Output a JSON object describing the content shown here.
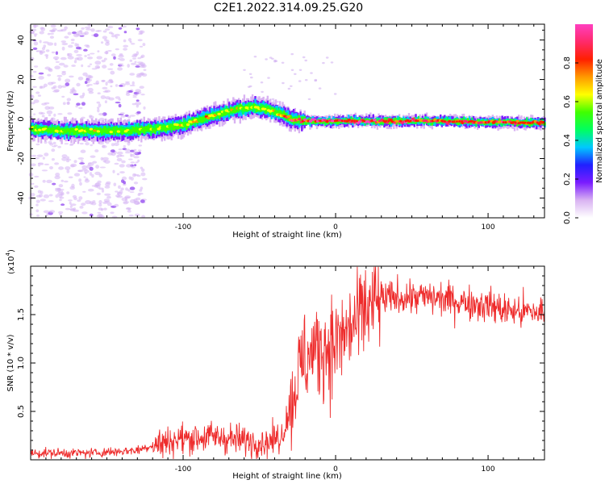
{
  "title": "C2E1.2022.314.09.25.G20",
  "chart_data": [
    {
      "type": "heatmap",
      "title": "C2E1.2022.314.09.25.G20",
      "xlabel": "Height of straight line (km)",
      "ylabel": "Frequency (Hz)",
      "xlim": [
        -200,
        137
      ],
      "ylim": [
        -50,
        48
      ],
      "x_ticks": [
        -100,
        0,
        100
      ],
      "y_ticks": [
        -40,
        -20,
        0,
        20,
        40
      ],
      "colorbar": {
        "label": "Normalized spectral amplitude",
        "range": [
          0.0,
          1.0
        ],
        "ticks": [
          "0.0",
          "0.2",
          "0.4",
          "0.6",
          "0.8"
        ],
        "tick_values": [
          0.0,
          0.2,
          0.4,
          0.6,
          0.8
        ],
        "colors": [
          "#ffffff",
          "#d9b3f2",
          "#7a1cff",
          "#2020ff",
          "#00c8ff",
          "#00ff60",
          "#40ff00",
          "#ffff00",
          "#ff9900",
          "#ff2000",
          "#ff2a6a",
          "#ff40c0"
        ]
      },
      "ridge": {
        "x": [
          -200,
          -180,
          -160,
          -140,
          -120,
          -100,
          -80,
          -65,
          -55,
          -45,
          -38,
          -30,
          -22,
          -15,
          -5,
          0,
          10,
          30,
          60,
          100,
          137
        ],
        "freq": [
          -5,
          -6,
          -6,
          -6,
          -5,
          -3,
          2,
          5,
          6,
          5,
          3,
          0,
          -1,
          -1,
          -1,
          -1,
          -1,
          -1,
          -1,
          -1.5,
          -2
        ],
        "peak": [
          0.55,
          0.55,
          0.55,
          0.5,
          0.55,
          0.6,
          0.62,
          0.62,
          0.6,
          0.62,
          0.7,
          0.8,
          0.9,
          0.92,
          0.92,
          0.92,
          0.93,
          0.93,
          0.85,
          0.85,
          0.8
        ]
      }
    },
    {
      "type": "line",
      "xlabel": "Height of straight line (km)",
      "ylabel": "SNR (10 * v/v)",
      "y_multiplier": "(x10",
      "y_multiplier_exp": "4",
      "y_multiplier_close": ")",
      "xlim": [
        -200,
        137
      ],
      "ylim": [
        0,
        20000
      ],
      "x_ticks": [
        -100,
        0,
        100
      ],
      "y_ticks": [
        5000,
        10000,
        15000
      ],
      "y_tick_labels": [
        "0.5",
        "1.0",
        "1.5"
      ],
      "series_color": "#ee2b2b",
      "envelope": {
        "x": [
          -200,
          -160,
          -130,
          -120,
          -100,
          -80,
          -60,
          -45,
          -35,
          -30,
          -25,
          -20,
          -10,
          0,
          10,
          20,
          30,
          40,
          60,
          80,
          100,
          110,
          120,
          137
        ],
        "y": [
          700,
          700,
          1000,
          1500,
          2200,
          2400,
          2000,
          1800,
          2500,
          5500,
          8500,
          10500,
          11500,
          12000,
          13500,
          15500,
          16500,
          16800,
          16800,
          16400,
          16000,
          15500,
          15300,
          15200
        ]
      }
    }
  ]
}
